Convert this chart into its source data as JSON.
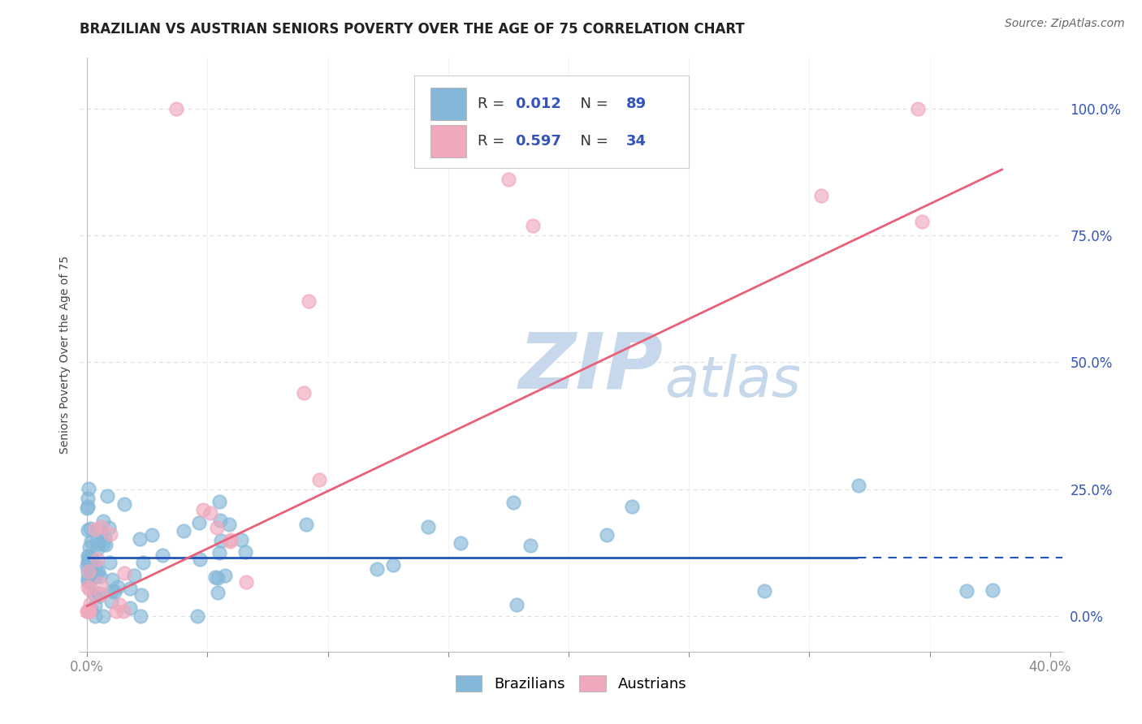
{
  "title": "BRAZILIAN VS AUSTRIAN SENIORS POVERTY OVER THE AGE OF 75 CORRELATION CHART",
  "source": "Source: ZipAtlas.com",
  "ylabel": "Seniors Poverty Over the Age of 75",
  "xlim": [
    -0.003,
    0.405
  ],
  "ylim": [
    -0.07,
    1.1
  ],
  "xticks": [
    0.0,
    0.05,
    0.1,
    0.15,
    0.2,
    0.25,
    0.3,
    0.35,
    0.4
  ],
  "xticklabels": [
    "0.0%",
    "",
    "",
    "",
    "",
    "",
    "",
    "",
    "40.0%"
  ],
  "ytick_vals": [
    0.0,
    0.25,
    0.5,
    0.75,
    1.0
  ],
  "ytick_labels": [
    "0.0%",
    "25.0%",
    "50.0%",
    "75.0%",
    "100.0%"
  ],
  "brazilian_R": 0.012,
  "brazilian_N": 89,
  "austrian_R": 0.597,
  "austrian_N": 34,
  "brazilian_color": "#85B8D8",
  "austrian_color": "#F0A8BC",
  "brazilian_line_color": "#2255BB",
  "austrian_line_color": "#E8607A",
  "background_color": "#FFFFFF",
  "watermark_zip": "ZIP",
  "watermark_atlas": "atlas",
  "watermark_color": "#C8D8EC",
  "grid_color": "#DDDDDD",
  "tick_color": "#3355BB",
  "title_fontsize": 12,
  "source_fontsize": 10,
  "legend_fontsize": 13,
  "axis_label_fontsize": 10,
  "legend_R_color": "#3355BB",
  "legend_N_color": "#3355BB"
}
